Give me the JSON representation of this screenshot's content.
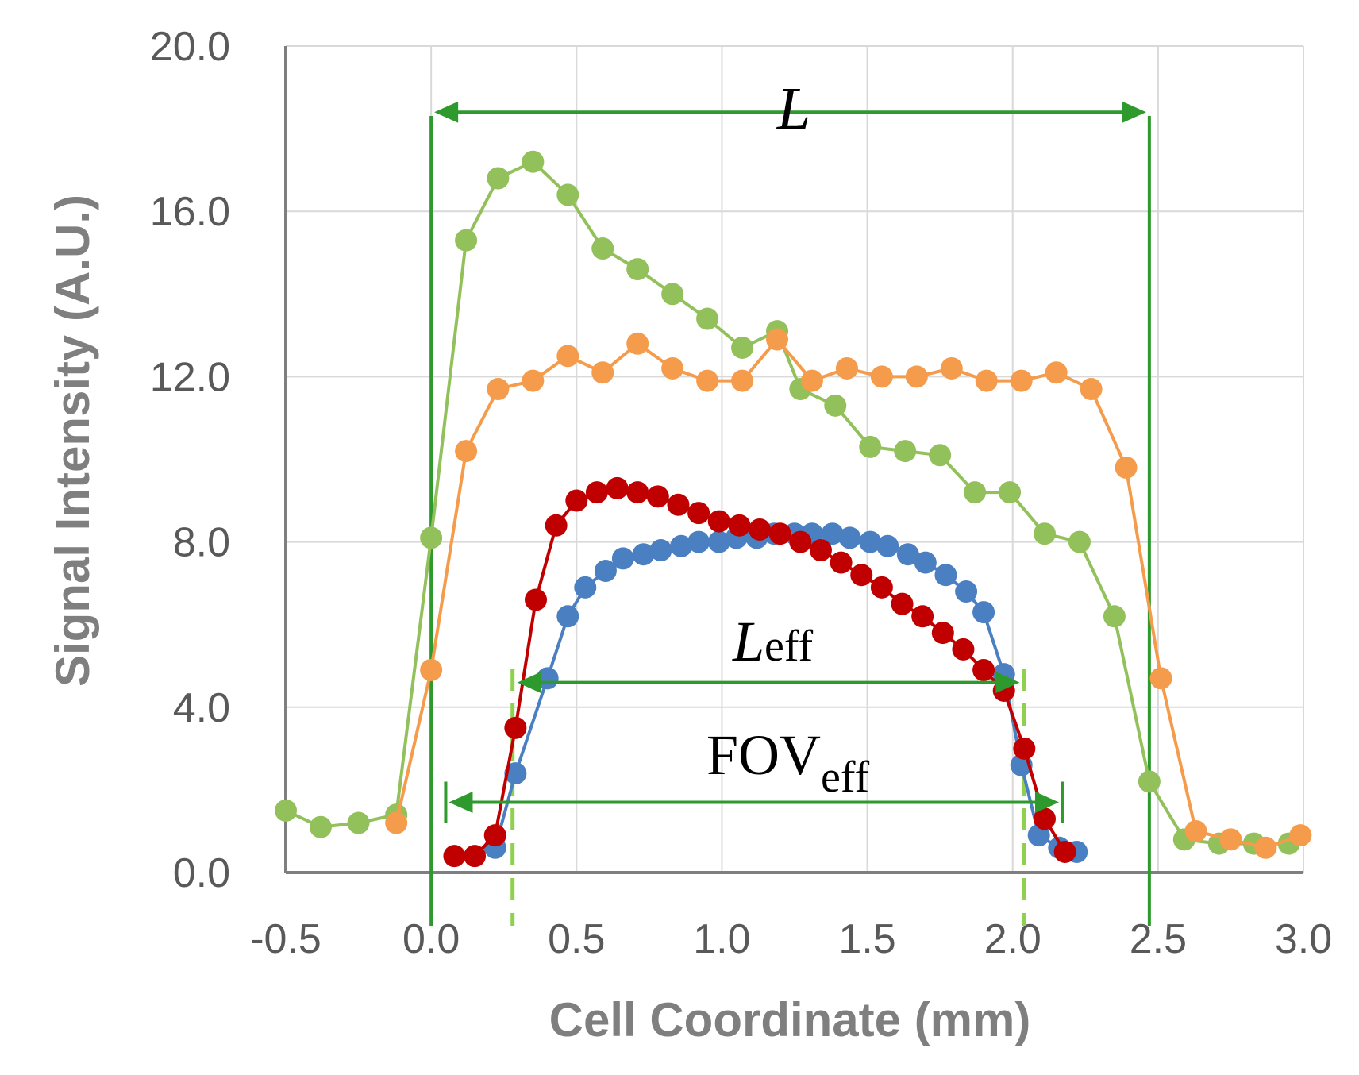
{
  "chart_data": {
    "type": "line",
    "xlabel": "Cell Coordinate (mm)",
    "ylabel": "Signal Intensity (A.U.)",
    "xlim": [
      -0.5,
      3.0
    ],
    "ylim": [
      0.0,
      20.0
    ],
    "x_ticks": [
      "-0.5",
      "0.0",
      "0.5",
      "1.0",
      "1.5",
      "2.0",
      "2.5",
      "3.0"
    ],
    "y_ticks": [
      "0.0",
      "4.0",
      "8.0",
      "12.0",
      "16.0",
      "20.0"
    ],
    "x_tick_values": [
      -0.5,
      0.0,
      0.5,
      1.0,
      1.5,
      2.0,
      2.5,
      3.0
    ],
    "y_tick_values": [
      0,
      4,
      8,
      12,
      16,
      20
    ],
    "grid": true,
    "legend": "none",
    "series": [
      {
        "name": "green",
        "color": "#92c05a",
        "x": [
          -0.5,
          -0.38,
          -0.25,
          -0.12,
          0.0,
          0.12,
          0.23,
          0.35,
          0.47,
          0.59,
          0.71,
          0.83,
          0.95,
          1.07,
          1.19,
          1.27,
          1.39,
          1.51,
          1.63,
          1.75,
          1.87,
          1.99,
          2.11,
          2.23,
          2.35,
          2.47,
          2.59,
          2.71,
          2.83,
          2.95
        ],
        "y": [
          1.5,
          1.1,
          1.2,
          1.4,
          8.1,
          15.3,
          16.8,
          17.2,
          16.4,
          15.1,
          14.6,
          14.0,
          13.4,
          12.7,
          13.1,
          11.7,
          11.3,
          10.3,
          10.2,
          10.1,
          9.2,
          9.2,
          8.2,
          8.0,
          6.2,
          2.2,
          0.8,
          0.7,
          0.7,
          0.7
        ]
      },
      {
        "name": "orange",
        "color": "#f59b4c",
        "x": [
          -0.12,
          0.0,
          0.12,
          0.23,
          0.35,
          0.47,
          0.59,
          0.71,
          0.83,
          0.95,
          1.07,
          1.19,
          1.31,
          1.43,
          1.55,
          1.67,
          1.79,
          1.91,
          2.03,
          2.15,
          2.27,
          2.39,
          2.51,
          2.63,
          2.75,
          2.87,
          2.99
        ],
        "y": [
          1.2,
          4.9,
          10.2,
          11.7,
          11.9,
          12.5,
          12.1,
          12.8,
          12.2,
          11.9,
          11.9,
          12.9,
          11.9,
          12.2,
          12.0,
          12.0,
          12.2,
          11.9,
          11.9,
          12.1,
          11.7,
          9.8,
          4.7,
          1.0,
          0.8,
          0.6,
          0.9
        ]
      },
      {
        "name": "blue",
        "color": "#4a7fc1",
        "x": [
          0.22,
          0.29,
          0.4,
          0.47,
          0.53,
          0.6,
          0.66,
          0.73,
          0.79,
          0.86,
          0.92,
          0.99,
          1.05,
          1.12,
          1.18,
          1.25,
          1.31,
          1.38,
          1.44,
          1.51,
          1.57,
          1.64,
          1.7,
          1.77,
          1.84,
          1.9,
          1.97,
          2.03,
          2.09,
          2.16,
          2.22
        ],
        "y": [
          0.6,
          2.4,
          4.7,
          6.2,
          6.9,
          7.3,
          7.6,
          7.7,
          7.8,
          7.9,
          8.0,
          8.0,
          8.1,
          8.1,
          8.2,
          8.2,
          8.2,
          8.2,
          8.1,
          8.0,
          7.9,
          7.7,
          7.5,
          7.2,
          6.8,
          6.3,
          4.8,
          2.6,
          0.9,
          0.6,
          0.5
        ]
      },
      {
        "name": "red",
        "color": "#c00000",
        "x": [
          0.08,
          0.15,
          0.22,
          0.29,
          0.36,
          0.43,
          0.5,
          0.57,
          0.64,
          0.71,
          0.78,
          0.85,
          0.92,
          0.99,
          1.06,
          1.13,
          1.2,
          1.27,
          1.34,
          1.41,
          1.48,
          1.55,
          1.62,
          1.69,
          1.76,
          1.83,
          1.9,
          1.97,
          2.04,
          2.11,
          2.18
        ],
        "y": [
          0.4,
          0.4,
          0.9,
          3.5,
          6.6,
          8.4,
          9.0,
          9.2,
          9.3,
          9.2,
          9.1,
          8.9,
          8.7,
          8.5,
          8.4,
          8.3,
          8.2,
          8.0,
          7.8,
          7.5,
          7.2,
          6.9,
          6.5,
          6.2,
          5.8,
          5.4,
          4.9,
          4.4,
          3.0,
          1.3,
          0.5
        ]
      }
    ],
    "annotations": {
      "L": {
        "label": "L",
        "x_start": 0.0,
        "x_end": 2.47,
        "y": 18.4,
        "color": "#2e9a2e"
      },
      "L_eff": {
        "label": "L",
        "subscript": "eff",
        "x_start": 0.28,
        "x_end": 2.04,
        "y": 4.6,
        "color": "#2e9a2e",
        "guide_color": "#8fd14f"
      },
      "FOV_eff": {
        "label": "FOV",
        "subscript": "eff",
        "x_start": 0.05,
        "x_end": 2.17,
        "y": 1.7,
        "color": "#2e9a2e"
      }
    }
  }
}
